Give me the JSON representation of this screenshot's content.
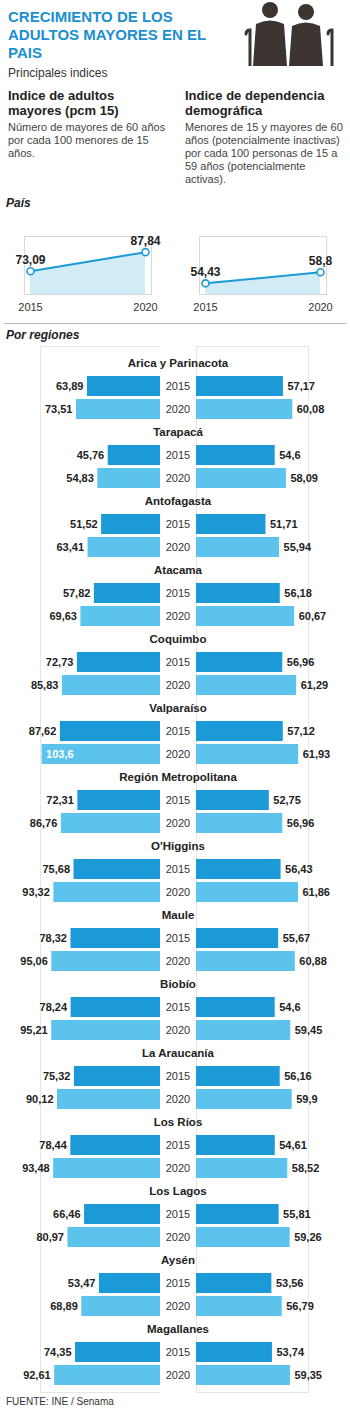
{
  "header": {
    "title": "CRECIMIENTO DE LOS ADULTOS MAYORES EN EL PAIS",
    "subtitle": "Principales indices"
  },
  "sections": {
    "pais": "País",
    "regiones": "Por regiones"
  },
  "source": "FUENTE: INE / Senama",
  "chart_data": [
    {
      "type": "line",
      "title": "Indice de adultos mayores (pcm 15)",
      "subtitle": "Número de mayores de 60 años por cada 100 menores de 15 años.",
      "x": [
        2015,
        2020
      ],
      "values": [
        73.09,
        87.84
      ],
      "value_labels": [
        "73,09",
        "87,84"
      ],
      "color": "#1b9ad7",
      "xlim": [
        2015,
        2020
      ],
      "xticks": [
        2015,
        2020
      ],
      "ylim": [
        55,
        100
      ],
      "tick_labels": "x",
      "data_labels": true
    },
    {
      "type": "line",
      "title": "Indice de dependencia demográfica",
      "subtitle": "Menores de 15 y mayores de 60 años (potencialmente inactivas) por cada 100 personas de 15 a 59 años (potencialmente activas).",
      "x": [
        2015,
        2020
      ],
      "values": [
        54.43,
        58.8
      ],
      "value_labels": [
        "54,43",
        "58,8"
      ],
      "color": "#1b9ad7",
      "xlim": [
        2015,
        2020
      ],
      "xticks": [
        2015,
        2020
      ],
      "ylim": [
        50,
        73
      ],
      "tick_labels": "x",
      "data_labels": true
    },
    {
      "type": "bar",
      "orientation": "horizontal",
      "categories": [
        "Arica y Parinacota",
        "Tarapacá",
        "Antofagasta",
        "Atacama",
        "Coquimbo",
        "Valparaíso",
        "Región Metropolitana",
        "O'Higgins",
        "Maule",
        "Biobío",
        "La Araucanía",
        "Los Ríos",
        "Los Lagos",
        "Aysén",
        "Magallanes"
      ],
      "series": [
        {
          "name": "2015",
          "color": "#1b9ad7",
          "values": [
            63.89,
            45.76,
            51.52,
            57.82,
            72.73,
            87.62,
            72.31,
            75.68,
            78.32,
            78.24,
            75.32,
            78.44,
            66.46,
            53.47,
            74.35
          ],
          "value_labels": [
            "63,89",
            "45,76",
            "51,52",
            "57,82",
            "72,73",
            "87,62",
            "72,31",
            "75,68",
            "78,32",
            "78,24",
            "75,32",
            "78,44",
            "66,46",
            "53,47",
            "74,35"
          ]
        },
        {
          "name": "2020",
          "color": "#5cc3ec",
          "values": [
            73.51,
            54.83,
            63.41,
            69.63,
            85.83,
            103.6,
            86.76,
            93.32,
            95.06,
            95.21,
            90.12,
            93.48,
            80.97,
            68.89,
            92.61
          ],
          "value_labels": [
            "73,51",
            "54,83",
            "63,41",
            "69,63",
            "85,83",
            "103,6",
            "86,76",
            "93,32",
            "95,06",
            "95,21",
            "90,12",
            "93,48",
            "80,97",
            "68,89",
            "92,61"
          ]
        }
      ],
      "xlim": [
        0,
        105
      ],
      "tick_labels": false,
      "data_labels": true
    },
    {
      "type": "bar",
      "orientation": "horizontal",
      "categories": [
        "Arica y Parinacota",
        "Tarapacá",
        "Antofagasta",
        "Atacama",
        "Coquimbo",
        "Valparaíso",
        "Región Metropolitana",
        "O'Higgins",
        "Maule",
        "Biobío",
        "La Araucanía",
        "Los Ríos",
        "Los Lagos",
        "Aysén",
        "Magallanes"
      ],
      "series": [
        {
          "name": "2015",
          "color": "#1b9ad7",
          "values": [
            57.17,
            54.6,
            51.71,
            56.18,
            56.96,
            57.12,
            52.75,
            56.43,
            55.67,
            54.6,
            56.16,
            54.61,
            55.81,
            53.56,
            53.74
          ],
          "value_labels": [
            "57,17",
            "54,6",
            "51,71",
            "56,18",
            "56,96",
            "57,12",
            "52,75",
            "56,43",
            "55,67",
            "54,6",
            "56,16",
            "54,61",
            "55,81",
            "53,56",
            "53,74"
          ]
        },
        {
          "name": "2020",
          "color": "#5cc3ec",
          "values": [
            60.08,
            58.09,
            55.94,
            60.67,
            61.29,
            61.93,
            56.96,
            61.86,
            60.88,
            59.45,
            59.9,
            58.52,
            59.26,
            56.79,
            59.35
          ],
          "value_labels": [
            "60,08",
            "58,09",
            "55,94",
            "60,67",
            "61,29",
            "61,93",
            "56,96",
            "61,86",
            "60,88",
            "59,45",
            "59,9",
            "58,52",
            "59,26",
            "56,79",
            "59,35"
          ]
        }
      ],
      "xlim": [
        30,
        65
      ],
      "tick_labels": false,
      "data_labels": true
    }
  ]
}
